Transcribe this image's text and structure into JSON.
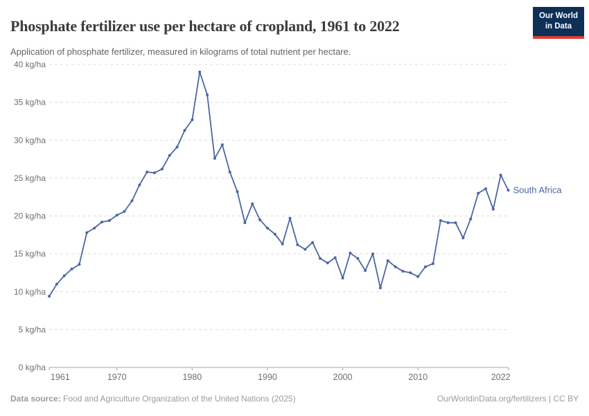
{
  "header": {
    "title": "Phosphate fertilizer use per hectare of cropland, 1961 to 2022",
    "subtitle": "Application of phosphate fertilizer, measured in kilograms of total nutrient per hectare.",
    "logo": {
      "line1": "Our World",
      "line2": "in Data"
    }
  },
  "colors": {
    "line": "#4b66a2",
    "grid": "#dcdcdc",
    "axis": "#a3a3a3",
    "tick_text": "#6f6f6f",
    "logo_bg": "#0e2f56",
    "logo_red": "#dc3c33"
  },
  "chart_data": {
    "type": "line",
    "title": "Phosphate fertilizer use per hectare of cropland, 1961 to 2022",
    "xlabel": "",
    "ylabel": "kg/ha",
    "ylim": [
      0,
      40
    ],
    "grid": "horizontal-dashed",
    "legend_position": "end-of-line-label",
    "entity_label": "South Africa",
    "yticks": [
      {
        "value": 0,
        "label": "0 kg/ha"
      },
      {
        "value": 5,
        "label": "5 kg/ha"
      },
      {
        "value": 10,
        "label": "10 kg/ha"
      },
      {
        "value": 15,
        "label": "15 kg/ha"
      },
      {
        "value": 20,
        "label": "20 kg/ha"
      },
      {
        "value": 25,
        "label": "25 kg/ha"
      },
      {
        "value": 30,
        "label": "30 kg/ha"
      },
      {
        "value": 35,
        "label": "35 kg/ha"
      },
      {
        "value": 40,
        "label": "40 kg/ha"
      }
    ],
    "xticks": [
      {
        "value": 1961,
        "label": "1961"
      },
      {
        "value": 1970,
        "label": "1970"
      },
      {
        "value": 1980,
        "label": "1980"
      },
      {
        "value": 1990,
        "label": "1990"
      },
      {
        "value": 2000,
        "label": "2000"
      },
      {
        "value": 2010,
        "label": "2010"
      },
      {
        "value": 2022,
        "label": "2022"
      }
    ],
    "x": [
      1961,
      1962,
      1963,
      1964,
      1965,
      1966,
      1967,
      1968,
      1969,
      1970,
      1971,
      1972,
      1973,
      1974,
      1975,
      1976,
      1977,
      1978,
      1979,
      1980,
      1981,
      1982,
      1983,
      1984,
      1985,
      1986,
      1987,
      1988,
      1989,
      1990,
      1991,
      1992,
      1993,
      1994,
      1995,
      1996,
      1997,
      1998,
      1999,
      2000,
      2001,
      2002,
      2003,
      2004,
      2005,
      2006,
      2007,
      2008,
      2009,
      2010,
      2011,
      2012,
      2013,
      2014,
      2015,
      2016,
      2017,
      2018,
      2019,
      2020,
      2021,
      2022
    ],
    "series": [
      {
        "name": "South Africa",
        "values": [
          9.4,
          11.0,
          12.1,
          13.0,
          13.6,
          17.8,
          18.4,
          19.2,
          19.4,
          20.1,
          20.6,
          22.0,
          24.1,
          25.8,
          25.7,
          26.2,
          28.0,
          29.1,
          31.3,
          32.7,
          39.0,
          36.0,
          27.6,
          29.4,
          25.8,
          23.2,
          19.1,
          21.6,
          19.5,
          18.4,
          17.6,
          16.3,
          19.7,
          16.2,
          15.6,
          16.5,
          14.4,
          13.8,
          14.5,
          11.8,
          15.1,
          14.4,
          12.8,
          15.0,
          10.5,
          14.1,
          13.3,
          12.7,
          12.5,
          12.0,
          13.3,
          13.7,
          19.4,
          19.1,
          19.1,
          17.1,
          19.6,
          23.0,
          23.6,
          20.9,
          25.4,
          23.4
        ]
      }
    ]
  },
  "footer": {
    "source_label": "Data source:",
    "source_text": " Food and Agriculture Organization of the United Nations (2025)",
    "credit": "OurWorldinData.org/fertilizers | CC BY"
  }
}
